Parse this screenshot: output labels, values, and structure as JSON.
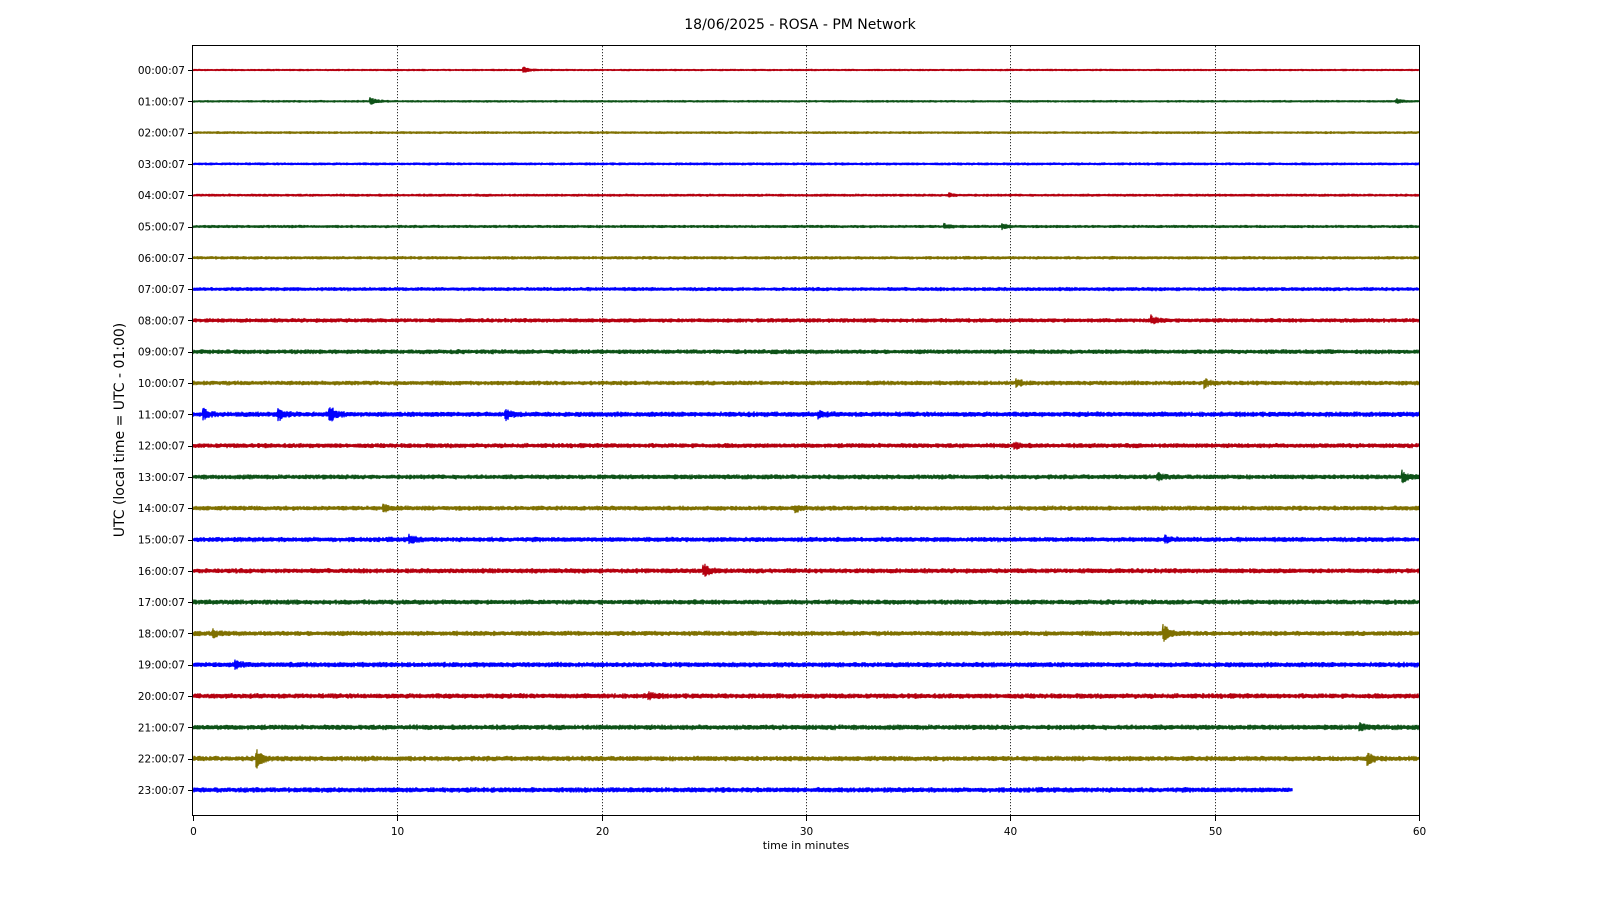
{
  "chart_data": {
    "type": "line",
    "title": "18/06/2025 - ROSA - PM Network",
    "xlabel": "time in minutes",
    "ylabel": "UTC (local time = UTC - 01:00)",
    "xlim": [
      0,
      60
    ],
    "x_ticks": [
      "0",
      "10",
      "20",
      "30",
      "40",
      "50",
      "60"
    ],
    "x_grid": true,
    "trace_colors": [
      "#b5000f",
      "#0d5217",
      "#7f7000",
      "#0000ff"
    ],
    "series": [
      {
        "name": "00:00:07",
        "end_minute": 60,
        "noise": 0.6,
        "events": [
          {
            "t": 16.2,
            "amp": 2.5
          }
        ]
      },
      {
        "name": "01:00:07",
        "end_minute": 60,
        "noise": 0.7,
        "events": [
          {
            "t": 8.7,
            "amp": 3.5
          },
          {
            "t": 58.9,
            "amp": 2
          }
        ]
      },
      {
        "name": "02:00:07",
        "end_minute": 60,
        "noise": 0.8,
        "events": []
      },
      {
        "name": "03:00:07",
        "end_minute": 60,
        "noise": 0.9,
        "events": []
      },
      {
        "name": "04:00:07",
        "end_minute": 60,
        "noise": 0.9,
        "events": [
          {
            "t": 37.0,
            "amp": 1.8
          }
        ]
      },
      {
        "name": "05:00:07",
        "end_minute": 60,
        "noise": 1.0,
        "events": [
          {
            "t": 36.8,
            "amp": 2
          },
          {
            "t": 39.6,
            "amp": 2
          }
        ]
      },
      {
        "name": "06:00:07",
        "end_minute": 60,
        "noise": 1.1,
        "events": []
      },
      {
        "name": "07:00:07",
        "end_minute": 60,
        "noise": 1.4,
        "events": []
      },
      {
        "name": "08:00:07",
        "end_minute": 60,
        "noise": 1.6,
        "events": [
          {
            "t": 46.9,
            "amp": 4
          }
        ]
      },
      {
        "name": "09:00:07",
        "end_minute": 60,
        "noise": 1.7,
        "events": []
      },
      {
        "name": "10:00:07",
        "end_minute": 60,
        "noise": 1.7,
        "events": [
          {
            "t": 40.3,
            "amp": 3
          },
          {
            "t": 49.5,
            "amp": 4
          }
        ]
      },
      {
        "name": "11:00:07",
        "end_minute": 60,
        "noise": 2.0,
        "events": [
          {
            "t": 0.5,
            "amp": 5
          },
          {
            "t": 4.2,
            "amp": 5
          },
          {
            "t": 6.7,
            "amp": 7
          },
          {
            "t": 15.3,
            "amp": 5
          },
          {
            "t": 30.6,
            "amp": 3
          }
        ]
      },
      {
        "name": "12:00:07",
        "end_minute": 60,
        "noise": 1.8,
        "events": [
          {
            "t": 40.2,
            "amp": 3
          }
        ]
      },
      {
        "name": "13:00:07",
        "end_minute": 60,
        "noise": 1.8,
        "events": [
          {
            "t": 47.2,
            "amp": 3
          },
          {
            "t": 59.2,
            "amp": 5
          }
        ]
      },
      {
        "name": "14:00:07",
        "end_minute": 60,
        "noise": 1.8,
        "events": [
          {
            "t": 9.3,
            "amp": 3
          },
          {
            "t": 29.5,
            "amp": 3
          }
        ]
      },
      {
        "name": "15:00:07",
        "end_minute": 60,
        "noise": 1.9,
        "events": [
          {
            "t": 10.6,
            "amp": 4
          },
          {
            "t": 47.6,
            "amp": 3
          }
        ]
      },
      {
        "name": "16:00:07",
        "end_minute": 60,
        "noise": 1.9,
        "events": [
          {
            "t": 25.0,
            "amp": 6
          }
        ]
      },
      {
        "name": "17:00:07",
        "end_minute": 60,
        "noise": 1.9,
        "events": []
      },
      {
        "name": "18:00:07",
        "end_minute": 60,
        "noise": 1.9,
        "events": [
          {
            "t": 1.0,
            "amp": 3
          },
          {
            "t": 47.5,
            "amp": 8
          }
        ]
      },
      {
        "name": "19:00:07",
        "end_minute": 60,
        "noise": 2.0,
        "events": [
          {
            "t": 2.1,
            "amp": 3
          }
        ]
      },
      {
        "name": "20:00:07",
        "end_minute": 60,
        "noise": 2.0,
        "events": [
          {
            "t": 22.3,
            "amp": 3
          }
        ]
      },
      {
        "name": "21:00:07",
        "end_minute": 60,
        "noise": 2.0,
        "events": [
          {
            "t": 57.1,
            "amp": 3
          }
        ]
      },
      {
        "name": "22:00:07",
        "end_minute": 60,
        "noise": 2.0,
        "events": [
          {
            "t": 3.1,
            "amp": 9
          },
          {
            "t": 57.5,
            "amp": 5
          }
        ]
      },
      {
        "name": "23:00:07",
        "end_minute": 53.8,
        "noise": 2.0,
        "events": []
      }
    ]
  }
}
